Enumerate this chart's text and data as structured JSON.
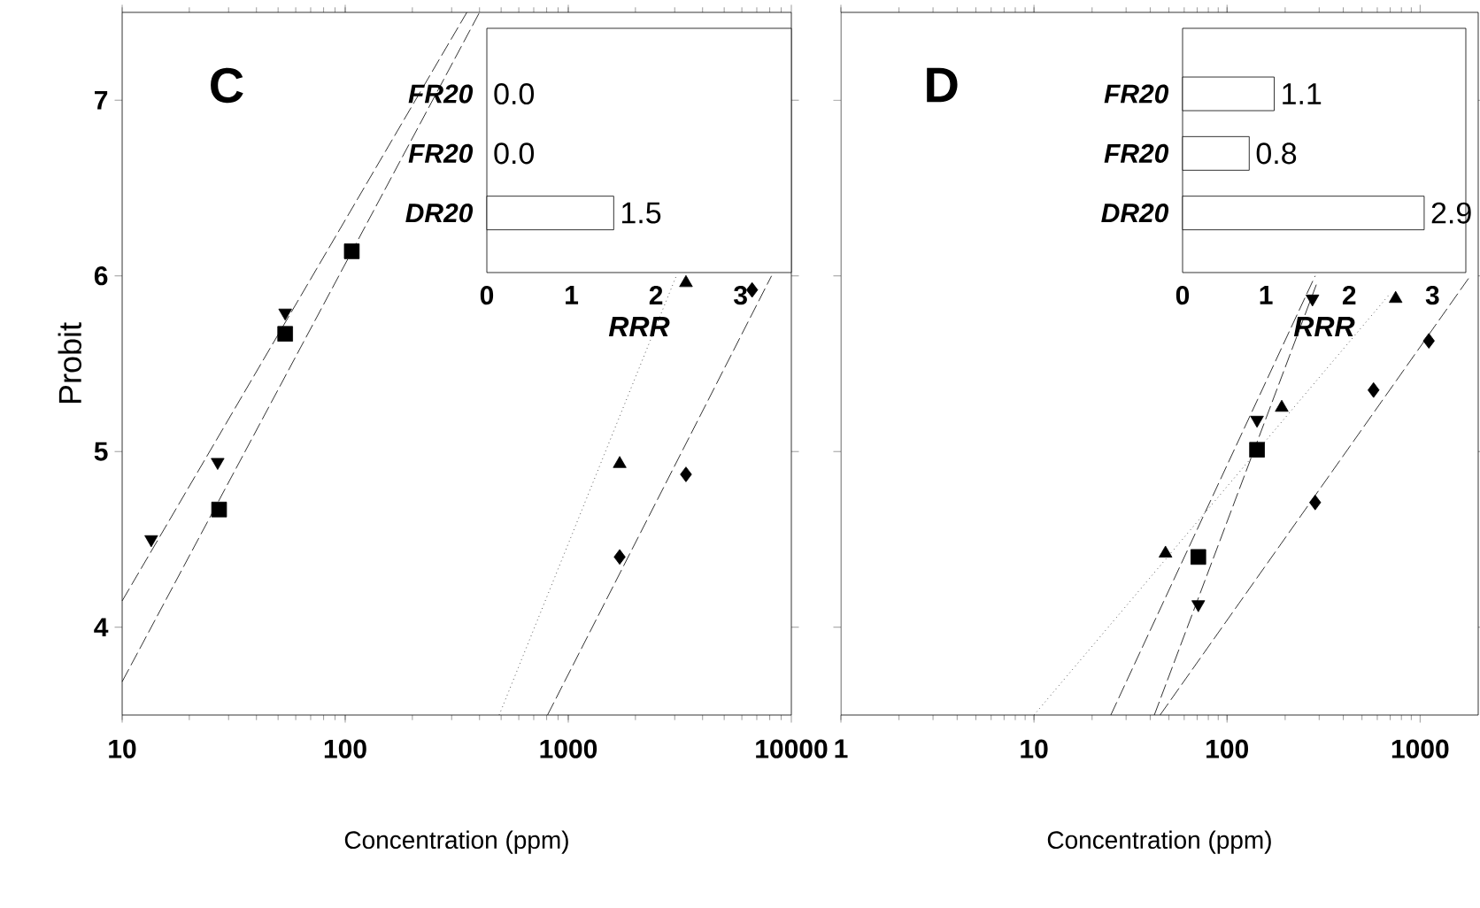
{
  "chart_data": [
    {
      "type": "scatter",
      "title": "C",
      "xlabel": "Concentration (ppm)",
      "ylabel": "Probit",
      "log": "x",
      "xlim": [
        10,
        10000
      ],
      "ylim": [
        3.5,
        7.5
      ],
      "xticks": [
        10,
        100,
        1000,
        10000
      ],
      "yticks": [
        4,
        5,
        6,
        7
      ],
      "series": [
        {
          "color": "#000000",
          "marker": "triangle_down",
          "x": [
            13.5,
            26.8,
            53.8
          ],
          "values": [
            4.5,
            4.94,
            5.79
          ]
        },
        {
          "color": "#000000",
          "marker": "square",
          "x": [
            27.2,
            53.8,
            107
          ],
          "values": [
            4.67,
            5.67,
            6.14
          ]
        },
        {
          "color": "#000000",
          "marker": "triangle",
          "x": [
            1700,
            3370
          ],
          "values": [
            4.93,
            5.96
          ]
        },
        {
          "color": "#000000",
          "marker": "diamond",
          "x": [
            1700,
            3370,
            6670
          ],
          "values": [
            4.4,
            4.87,
            5.92
          ]
        },
        {
          "type": "line",
          "color": "#000000",
          "line_style": "dashed",
          "x": [
            10,
            351
          ],
          "values": [
            4.15,
            7.5
          ]
        },
        {
          "type": "line",
          "color": "#000000",
          "line_style": "dashed",
          "x": [
            10,
            400
          ],
          "values": [
            3.69,
            7.5
          ]
        },
        {
          "type": "line",
          "color": "#000000",
          "line_style": "dotted",
          "x": [
            490,
            3050
          ],
          "values": [
            3.5,
            6.0
          ]
        },
        {
          "type": "line",
          "color": "#000000",
          "line_style": "dashed",
          "x": [
            807,
            8150
          ],
          "values": [
            3.5,
            6.0
          ]
        }
      ]
    },
    {
      "type": "bar",
      "orientation": "horizontal",
      "categories": [
        "FR20",
        "FR20",
        "DR20"
      ],
      "values": [
        0,
        0,
        1.5
      ],
      "value_labels": [
        "0.0",
        "0.0",
        "1.5"
      ],
      "xlabel": "RRR",
      "xlim": [
        0,
        3.6
      ],
      "xticks": [
        0,
        1,
        2,
        3
      ],
      "color": "#ffffff"
    },
    {
      "type": "scatter",
      "title": "D",
      "xlabel": "Concentration (ppm)",
      "log": "x",
      "xlim": [
        1,
        2000
      ],
      "ylim": [
        3.5,
        7.5
      ],
      "xticks": [
        1,
        10,
        100,
        1000
      ],
      "yticks": [
        4,
        5,
        6,
        7
      ],
      "tick_labels": "x",
      "series": [
        {
          "color": "#000000",
          "marker": "triangle_down",
          "x": [
            71,
            143,
            277
          ],
          "values": [
            4.13,
            5.18,
            5.87
          ]
        },
        {
          "color": "#000000",
          "marker": "square",
          "x": [
            71,
            143
          ],
          "values": [
            4.4,
            5.01
          ]
        },
        {
          "color": "#000000",
          "marker": "triangle",
          "x": [
            48,
            192,
            747
          ],
          "values": [
            4.42,
            5.25,
            5.87
          ]
        },
        {
          "color": "#000000",
          "marker": "diamond",
          "x": [
            286,
            574,
            1110
          ],
          "values": [
            4.71,
            5.35,
            5.63
          ]
        },
        {
          "type": "line",
          "color": "#000000",
          "line_style": "dashed",
          "x": [
            25,
            286
          ],
          "values": [
            3.5,
            6.0
          ]
        },
        {
          "type": "line",
          "color": "#000000",
          "line_style": "dashed",
          "x": [
            42,
            290
          ],
          "values": [
            3.5,
            5.95
          ]
        },
        {
          "type": "line",
          "color": "#000000",
          "line_style": "dotted",
          "x": [
            10,
            700
          ],
          "values": [
            3.5,
            5.9
          ]
        },
        {
          "type": "line",
          "color": "#000000",
          "line_style": "dashed",
          "x": [
            45,
            1820
          ],
          "values": [
            3.5,
            6.0
          ]
        }
      ]
    },
    {
      "type": "bar",
      "orientation": "horizontal",
      "categories": [
        "FR20",
        "FR20",
        "DR20"
      ],
      "values": [
        1.1,
        0.8,
        2.9
      ],
      "value_labels": [
        "1.1",
        "0.8",
        "2.9"
      ],
      "xlabel": "RRR",
      "xlim": [
        0,
        3.4
      ],
      "xticks": [
        0,
        1,
        2,
        3
      ],
      "color": "#ffffff"
    }
  ]
}
